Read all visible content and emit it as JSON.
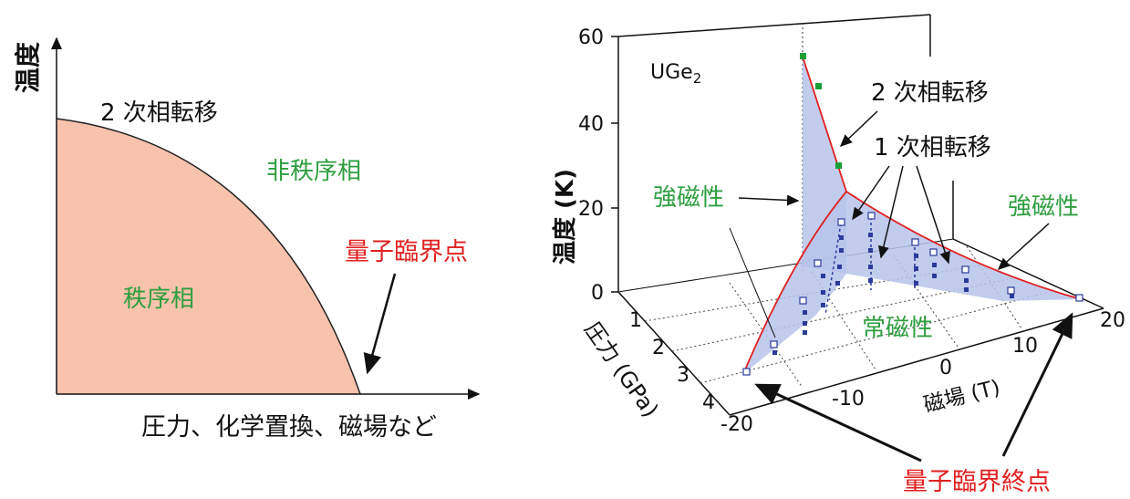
{
  "left_diagram": {
    "y_axis_label": "温度",
    "x_axis_label": "圧力、化学置換、磁場など",
    "second_order_label": "2 次相転移",
    "disordered_label": "非秩序相",
    "ordered_label": "秩序相",
    "qcp_label": "量子臨界点",
    "ordered_fill": "#f7c3ad"
  },
  "right_diagram": {
    "material_label": "UGe",
    "material_subscript": "2",
    "temperature_axis_label": "温度 (K)",
    "temperature_ticks": [
      "60",
      "40",
      "20",
      "0"
    ],
    "pressure_axis_label": "圧力 (GPa)",
    "pressure_ticks": [
      "1",
      "2",
      "3",
      "4"
    ],
    "field_axis_label": "磁場 (T)",
    "field_ticks": [
      "-20",
      "-10",
      "0",
      "10",
      "20"
    ],
    "second_order_label": "2 次相転移",
    "first_order_label": "1 次相転移",
    "ferro_left_label": "強磁性",
    "ferro_right_label": "強磁性",
    "para_label": "常磁性",
    "qcep_label": "量子臨界終点",
    "surface_fill": "#b7c3ea",
    "line_color": "#e02020",
    "marker_green": "#1a9e3a",
    "marker_blue": "#2a3b9a"
  }
}
